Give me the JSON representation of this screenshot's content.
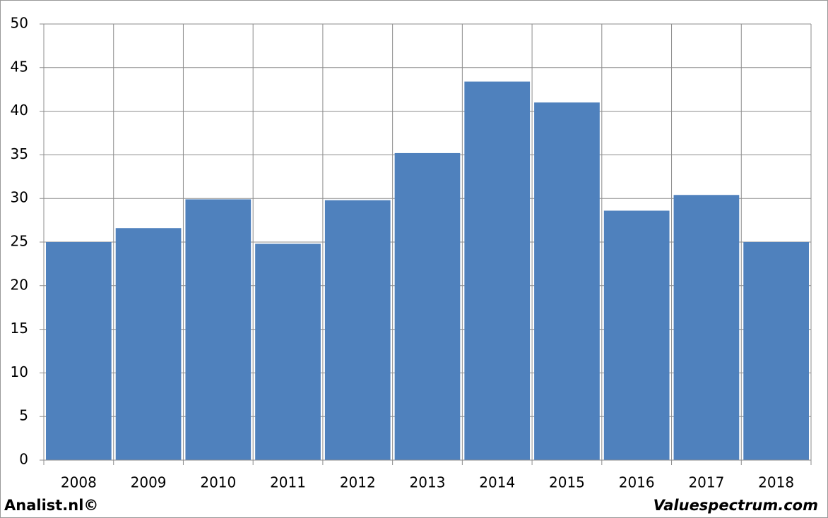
{
  "chart_data": {
    "type": "bar",
    "categories": [
      "2008",
      "2009",
      "2010",
      "2011",
      "2012",
      "2013",
      "2014",
      "2015",
      "2016",
      "2017",
      "2018"
    ],
    "values": [
      25.0,
      26.6,
      29.9,
      24.8,
      29.8,
      35.2,
      43.4,
      41.0,
      28.6,
      30.4,
      25.0
    ],
    "color": "#4f81bd",
    "ylim": [
      0,
      50
    ],
    "yticks": [
      0,
      5,
      10,
      15,
      20,
      25,
      30,
      35,
      40,
      45,
      50
    ],
    "grid": true,
    "footer_left": "Analist.nl©",
    "footer_right": "Valuespectrum.com"
  }
}
